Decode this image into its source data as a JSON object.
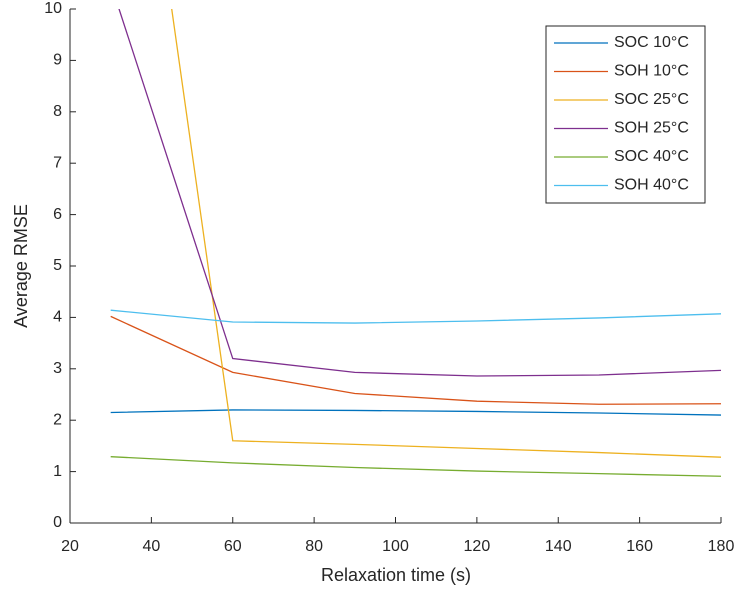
{
  "chart_data": {
    "type": "line",
    "x": [
      30,
      60,
      90,
      120,
      150,
      180
    ],
    "series": [
      {
        "name": "SOC 10°C",
        "color": "#0072BD",
        "values": [
          2.15,
          2.2,
          2.19,
          2.17,
          2.14,
          2.1
        ]
      },
      {
        "name": "SOH 10°C",
        "color": "#D95319",
        "values": [
          4.02,
          2.93,
          2.52,
          2.37,
          2.31,
          2.32
        ]
      },
      {
        "name": "SOC 25°C",
        "color": "#EDB120",
        "values": [
          18.4,
          1.6,
          1.53,
          1.45,
          1.37,
          1.28
        ]
      },
      {
        "name": "SOH 25°C",
        "color": "#7E2F8E",
        "values": [
          10.5,
          3.2,
          2.93,
          2.86,
          2.88,
          2.97
        ]
      },
      {
        "name": "SOC 40°C",
        "color": "#77AC30",
        "values": [
          1.29,
          1.17,
          1.08,
          1.01,
          0.96,
          0.91
        ]
      },
      {
        "name": "SOH 40°C",
        "color": "#4DBEEE",
        "values": [
          4.14,
          3.91,
          3.89,
          3.93,
          3.99,
          4.07
        ]
      }
    ],
    "x_label": "Relaxation time (s)",
    "y_label": "Average RMSE",
    "xlim": [
      20,
      180
    ],
    "xticks": [
      20,
      40,
      60,
      80,
      100,
      120,
      140,
      160,
      180
    ],
    "ylim": [
      0,
      10
    ],
    "yticks": [
      0,
      1,
      2,
      3,
      4,
      5,
      6,
      7,
      8,
      9,
      10
    ],
    "legend": "upper right"
  }
}
